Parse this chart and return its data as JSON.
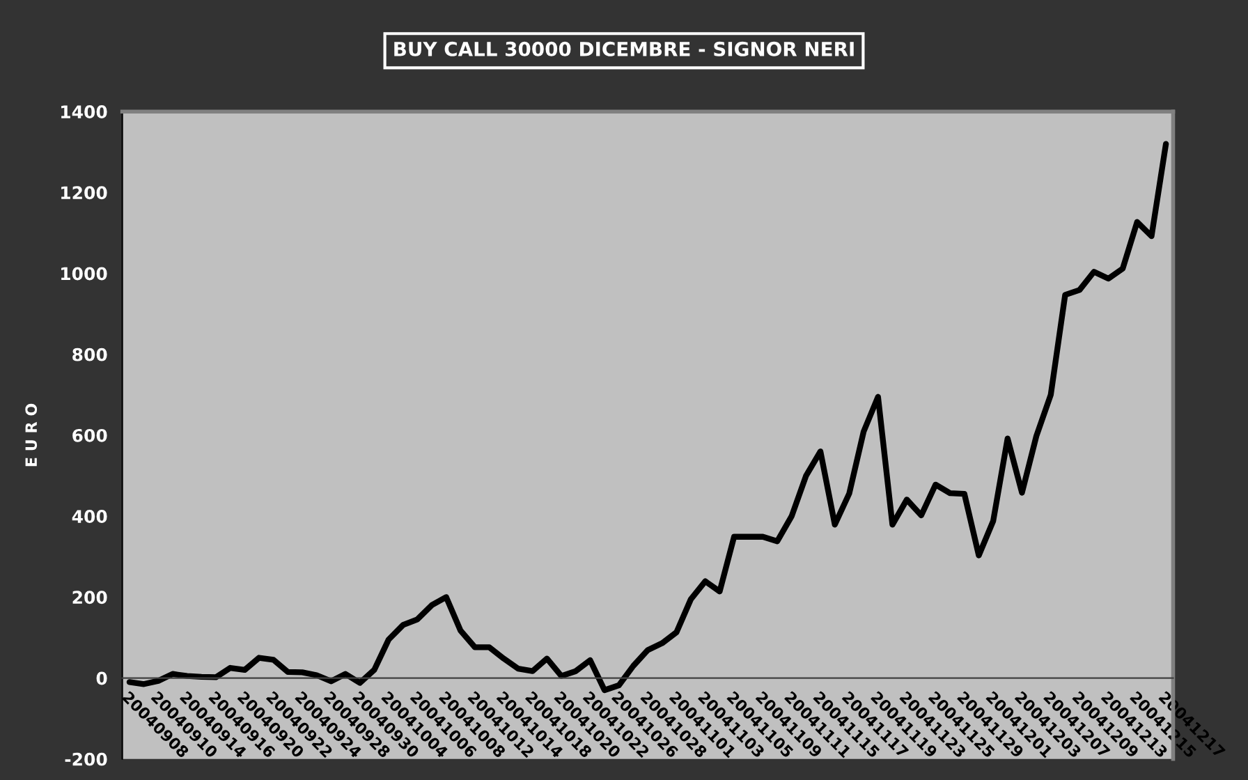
{
  "chart_data": {
    "type": "line",
    "title": "BUY CALL 30000 DICEMBRE - SIGNOR NERI",
    "ylabel": "E U R O",
    "categories": [
      "20040908",
      null,
      "20040910",
      null,
      "20040914",
      null,
      "20040916",
      null,
      "20040920",
      null,
      "20040922",
      null,
      "20040924",
      null,
      "20040928",
      null,
      "20040930",
      null,
      "20041004",
      null,
      "20041006",
      null,
      "20041008",
      null,
      "20041012",
      null,
      "20041014",
      null,
      "20041018",
      null,
      "20041020",
      null,
      "20041022",
      null,
      "20041026",
      null,
      "20041028",
      null,
      "20041101",
      null,
      "20041103",
      null,
      "20041105",
      null,
      "20041109",
      null,
      "20041111",
      null,
      "20041115",
      null,
      "20041117",
      null,
      "20041119",
      null,
      "20041123",
      null,
      "20041125",
      null,
      "20041129",
      null,
      "20041201",
      null,
      "20041203",
      null,
      "20041207",
      null,
      "20041209",
      null,
      "20041213",
      null,
      "20041215",
      null,
      "20041217"
    ],
    "series": [
      {
        "color": "#000000",
        "values": [
          -10,
          -15,
          -7,
          10,
          5,
          3,
          2,
          25,
          20,
          50,
          45,
          15,
          14,
          7,
          -8,
          10,
          -12,
          20,
          95,
          131,
          145,
          180,
          200,
          117,
          76,
          76,
          48,
          23,
          17,
          48,
          5,
          17,
          44,
          -30,
          -18,
          30,
          69,
          86,
          113,
          195,
          239,
          214,
          349,
          349,
          349,
          338,
          400,
          500,
          560,
          379,
          456,
          609,
          695,
          379,
          441,
          402,
          478,
          457,
          455,
          303,
          388,
          592,
          458,
          598,
          700,
          947,
          959,
          1004,
          987,
          1012,
          1127,
          1092,
          1320
        ]
      }
    ],
    "ylim": [
      -200,
      1400
    ],
    "yticks": [
      -200,
      0,
      200,
      400,
      600,
      800,
      1000,
      1200,
      1400
    ]
  }
}
